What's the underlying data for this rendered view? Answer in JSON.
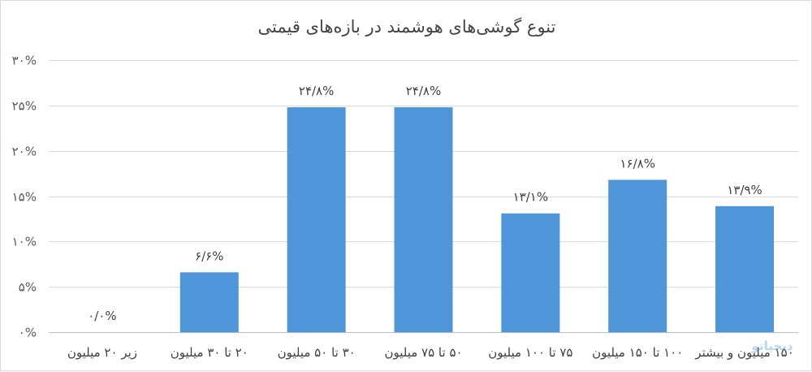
{
  "chart_data": {
    "type": "bar",
    "title": "تنوع گوشی‌های هوشمند در بازه‌های قیمتی",
    "xlabel": "",
    "ylabel": "",
    "ylim": [
      0,
      30
    ],
    "yticks": [
      0,
      5,
      10,
      15,
      20,
      25,
      30
    ],
    "ytick_labels": [
      "۰%",
      "۵%",
      "۱۰%",
      "۱۵%",
      "۲۰%",
      "۲۵%",
      "۳۰%"
    ],
    "categories": [
      "زیر ۲۰ میلیون",
      "۲۰ تا ۳۰ میلیون",
      "۳۰ تا ۵۰ میلیون",
      "۵۰ تا ۷۵ میلیون",
      "۷۵ تا ۱۰۰ میلیون",
      "۱۰۰ تا ۱۵۰ میلیون",
      "۱۵۰ میلیون و بیشتر"
    ],
    "values": [
      0.0,
      6.6,
      24.8,
      24.8,
      13.1,
      16.8,
      13.9
    ],
    "data_labels": [
      "۰/۰%",
      "۶/۶%",
      "۲۴/۸%",
      "۲۴/۸%",
      "۱۳/۱%",
      "۱۶/۸%",
      "۱۳/۹%"
    ],
    "bar_color": "#4f95d9",
    "grid": true,
    "legend": "none"
  },
  "watermark": {
    "text": "دیجیاتو",
    "color": "#2a8fd6"
  }
}
